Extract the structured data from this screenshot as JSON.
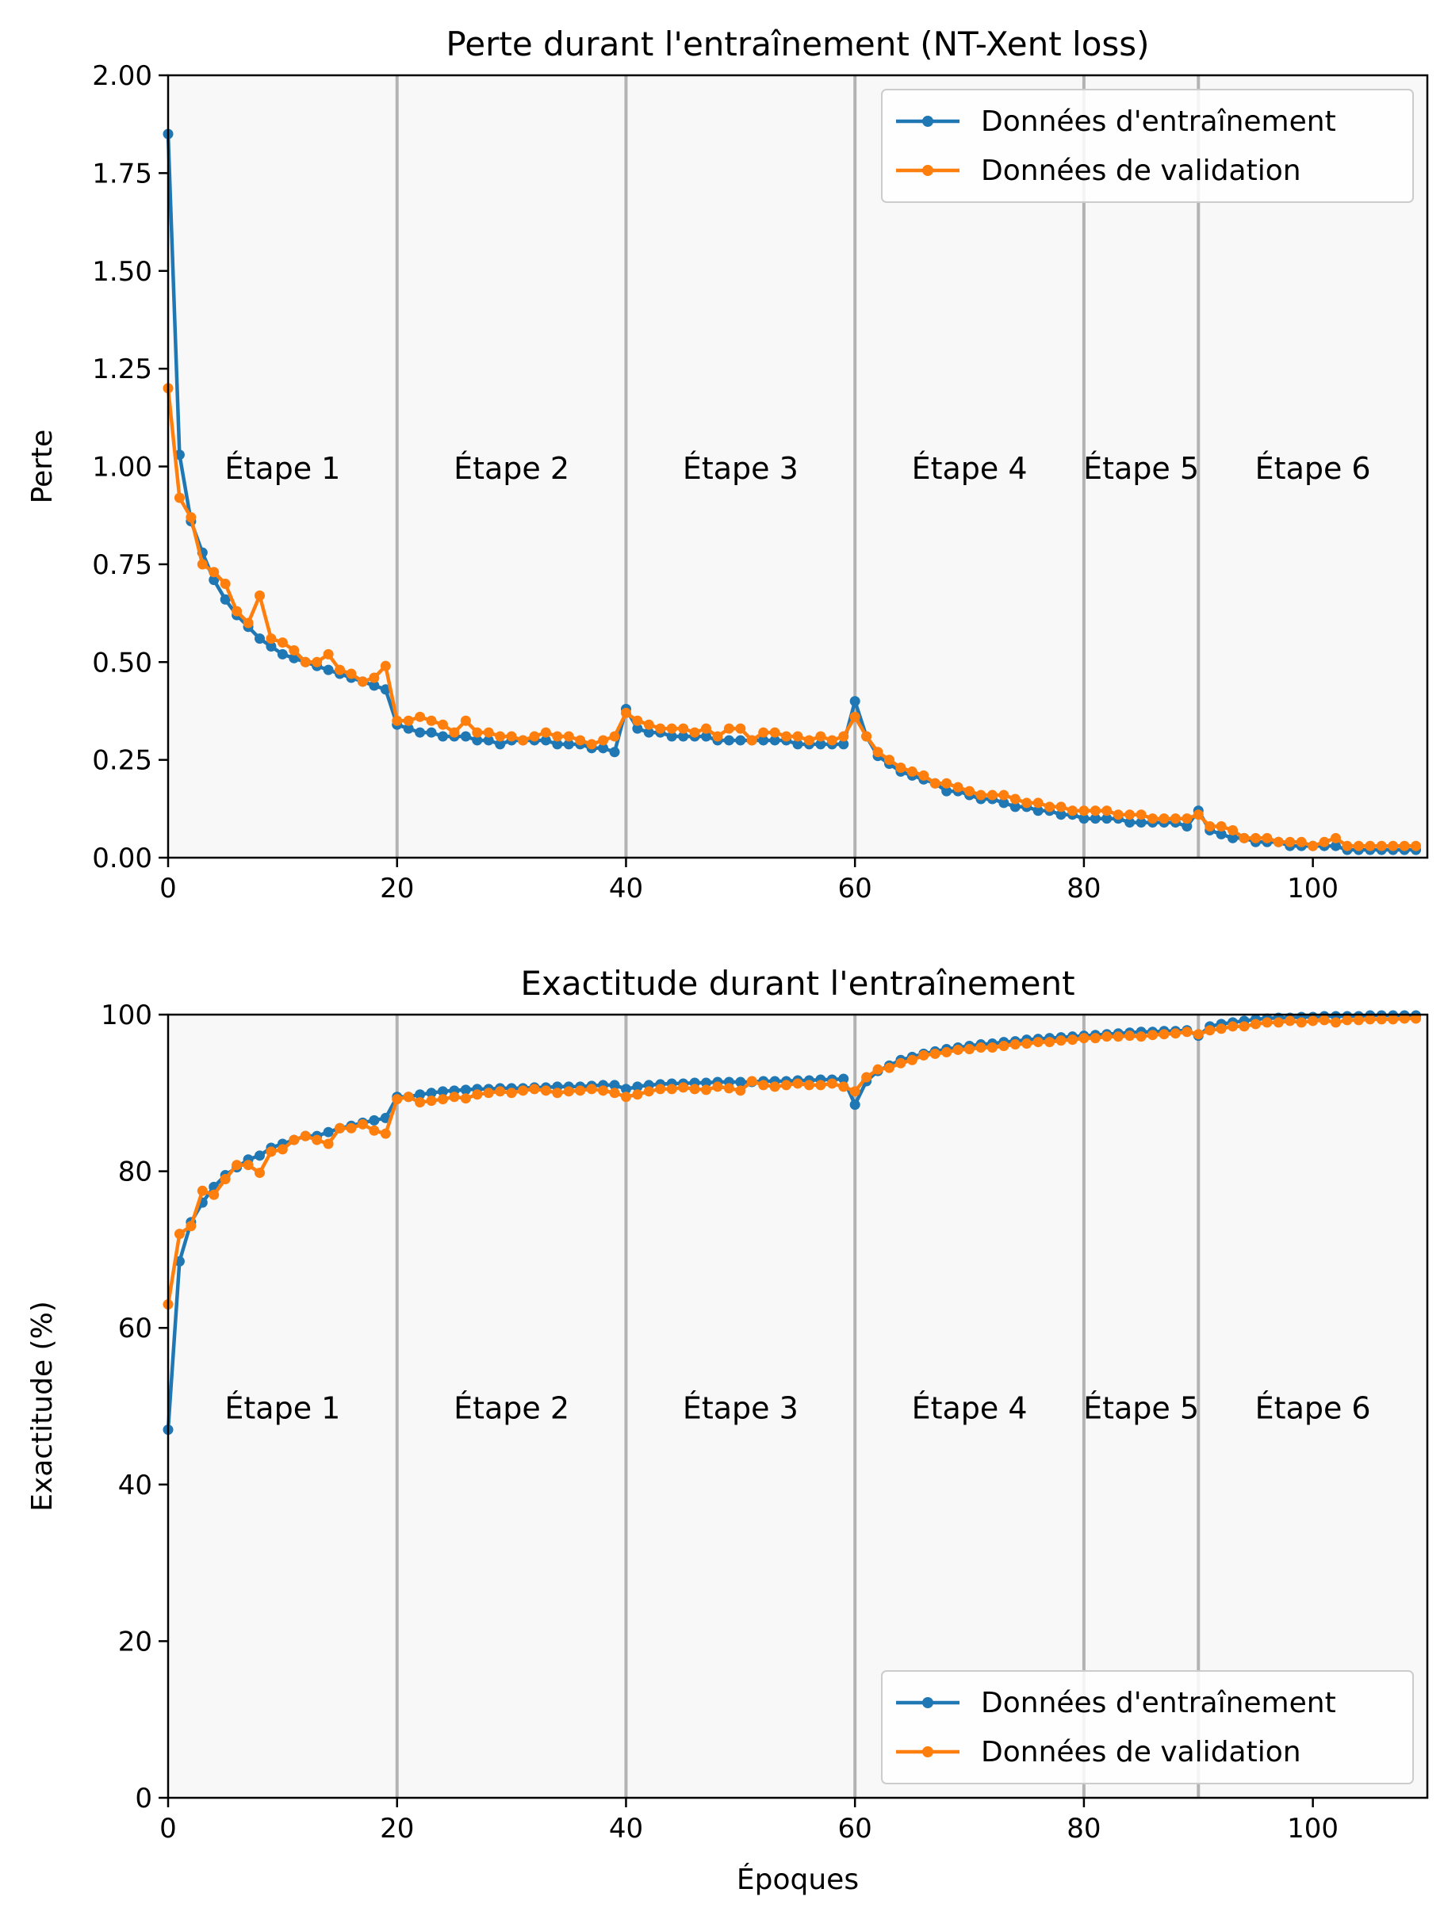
{
  "chart_data": [
    {
      "type": "line",
      "title": "Perte durant l'entraînement (NT-Xent loss)",
      "xlabel": "",
      "ylabel": "Perte",
      "xlim": [
        0,
        110
      ],
      "ylim": [
        0,
        2.0
      ],
      "xticks": [
        "0",
        "20",
        "40",
        "60",
        "80",
        "100"
      ],
      "yticks": [
        "0.00",
        "0.25",
        "0.50",
        "0.75",
        "1.00",
        "1.25",
        "1.50",
        "1.75",
        "2.00"
      ],
      "stage_boundaries": [
        20,
        40,
        60,
        80,
        90
      ],
      "stages": [
        "Étape 1",
        "Étape 2",
        "Étape 3",
        "Étape 4",
        "Étape 5",
        "Étape 6"
      ],
      "stage_label_value": 0.99,
      "legend_position": "upper right",
      "colors": {
        "train": "#1f77b4",
        "val": "#ff7f0e",
        "boundary": "#b3b3b3",
        "background": "#f8f8f8"
      },
      "x": [
        0,
        1,
        2,
        3,
        4,
        5,
        6,
        7,
        8,
        9,
        10,
        11,
        12,
        13,
        14,
        15,
        16,
        17,
        18,
        19,
        20,
        21,
        22,
        23,
        24,
        25,
        26,
        27,
        28,
        29,
        30,
        31,
        32,
        33,
        34,
        35,
        36,
        37,
        38,
        39,
        40,
        41,
        42,
        43,
        44,
        45,
        46,
        47,
        48,
        49,
        50,
        51,
        52,
        53,
        54,
        55,
        56,
        57,
        58,
        59,
        60,
        61,
        62,
        63,
        64,
        65,
        66,
        67,
        68,
        69,
        70,
        71,
        72,
        73,
        74,
        75,
        76,
        77,
        78,
        79,
        80,
        81,
        82,
        83,
        84,
        85,
        86,
        87,
        88,
        89,
        90,
        91,
        92,
        93,
        94,
        95,
        96,
        97,
        98,
        99,
        100,
        101,
        102,
        103,
        104,
        105,
        106,
        107,
        108,
        109
      ],
      "series": [
        {
          "name": "Données d'entraînement",
          "key": "train",
          "values": [
            1.85,
            1.03,
            0.86,
            0.78,
            0.71,
            0.66,
            0.62,
            0.59,
            0.56,
            0.54,
            0.52,
            0.51,
            0.5,
            0.49,
            0.48,
            0.47,
            0.46,
            0.45,
            0.44,
            0.43,
            0.34,
            0.33,
            0.32,
            0.32,
            0.31,
            0.31,
            0.31,
            0.3,
            0.3,
            0.29,
            0.3,
            0.3,
            0.3,
            0.3,
            0.29,
            0.29,
            0.29,
            0.28,
            0.28,
            0.27,
            0.38,
            0.33,
            0.32,
            0.32,
            0.31,
            0.31,
            0.31,
            0.31,
            0.3,
            0.3,
            0.3,
            0.3,
            0.3,
            0.3,
            0.3,
            0.29,
            0.29,
            0.29,
            0.29,
            0.29,
            0.4,
            0.31,
            0.26,
            0.24,
            0.22,
            0.21,
            0.2,
            0.19,
            0.17,
            0.17,
            0.16,
            0.15,
            0.15,
            0.14,
            0.13,
            0.13,
            0.12,
            0.12,
            0.11,
            0.11,
            0.1,
            0.1,
            0.1,
            0.1,
            0.09,
            0.09,
            0.09,
            0.09,
            0.09,
            0.08,
            0.12,
            0.07,
            0.06,
            0.05,
            0.05,
            0.04,
            0.04,
            0.04,
            0.03,
            0.03,
            0.03,
            0.03,
            0.03,
            0.02,
            0.02,
            0.02,
            0.02,
            0.02,
            0.02,
            0.02
          ]
        },
        {
          "name": "Données de validation",
          "key": "val",
          "values": [
            1.2,
            0.92,
            0.87,
            0.75,
            0.73,
            0.7,
            0.63,
            0.6,
            0.67,
            0.56,
            0.55,
            0.53,
            0.5,
            0.5,
            0.52,
            0.48,
            0.47,
            0.45,
            0.46,
            0.49,
            0.35,
            0.35,
            0.36,
            0.35,
            0.34,
            0.32,
            0.35,
            0.32,
            0.32,
            0.31,
            0.31,
            0.3,
            0.31,
            0.32,
            0.31,
            0.31,
            0.3,
            0.29,
            0.3,
            0.31,
            0.37,
            0.35,
            0.34,
            0.33,
            0.33,
            0.33,
            0.32,
            0.33,
            0.31,
            0.33,
            0.33,
            0.3,
            0.32,
            0.32,
            0.31,
            0.31,
            0.3,
            0.31,
            0.3,
            0.31,
            0.36,
            0.31,
            0.27,
            0.25,
            0.23,
            0.22,
            0.21,
            0.19,
            0.19,
            0.18,
            0.17,
            0.16,
            0.16,
            0.16,
            0.15,
            0.14,
            0.14,
            0.13,
            0.13,
            0.12,
            0.12,
            0.12,
            0.12,
            0.11,
            0.11,
            0.11,
            0.1,
            0.1,
            0.1,
            0.1,
            0.11,
            0.08,
            0.08,
            0.07,
            0.05,
            0.05,
            0.05,
            0.04,
            0.04,
            0.04,
            0.03,
            0.04,
            0.05,
            0.03,
            0.03,
            0.03,
            0.03,
            0.03,
            0.03,
            0.03
          ]
        }
      ]
    },
    {
      "type": "line",
      "title": "Exactitude durant l'entraînement",
      "xlabel": "Époques",
      "ylabel": "Exactitude (%)",
      "xlim": [
        0,
        110
      ],
      "ylim": [
        0,
        100
      ],
      "xticks": [
        "0",
        "20",
        "40",
        "60",
        "80",
        "100"
      ],
      "yticks": [
        "0",
        "20",
        "40",
        "60",
        "80",
        "100"
      ],
      "stage_boundaries": [
        20,
        40,
        60,
        80,
        90
      ],
      "stages": [
        "Étape 1",
        "Étape 2",
        "Étape 3",
        "Étape 4",
        "Étape 5",
        "Étape 6"
      ],
      "stage_label_value": 49.5,
      "legend_position": "lower right",
      "colors": {
        "train": "#1f77b4",
        "val": "#ff7f0e",
        "boundary": "#b3b3b3",
        "background": "#f8f8f8"
      },
      "x": [
        0,
        1,
        2,
        3,
        4,
        5,
        6,
        7,
        8,
        9,
        10,
        11,
        12,
        13,
        14,
        15,
        16,
        17,
        18,
        19,
        20,
        21,
        22,
        23,
        24,
        25,
        26,
        27,
        28,
        29,
        30,
        31,
        32,
        33,
        34,
        35,
        36,
        37,
        38,
        39,
        40,
        41,
        42,
        43,
        44,
        45,
        46,
        47,
        48,
        49,
        50,
        51,
        52,
        53,
        54,
        55,
        56,
        57,
        58,
        59,
        60,
        61,
        62,
        63,
        64,
        65,
        66,
        67,
        68,
        69,
        70,
        71,
        72,
        73,
        74,
        75,
        76,
        77,
        78,
        79,
        80,
        81,
        82,
        83,
        84,
        85,
        86,
        87,
        88,
        89,
        90,
        91,
        92,
        93,
        94,
        95,
        96,
        97,
        98,
        99,
        100,
        101,
        102,
        103,
        104,
        105,
        106,
        107,
        108,
        109
      ],
      "series": [
        {
          "name": "Données d'entraînement",
          "key": "train",
          "values": [
            47.0,
            68.5,
            73.5,
            76.0,
            78.0,
            79.5,
            80.5,
            81.5,
            82.0,
            83.0,
            83.5,
            84.0,
            84.5,
            84.5,
            85.0,
            85.5,
            85.8,
            86.2,
            86.5,
            86.8,
            89.5,
            89.5,
            89.8,
            90.0,
            90.2,
            90.3,
            90.4,
            90.5,
            90.5,
            90.6,
            90.6,
            90.6,
            90.7,
            90.7,
            90.8,
            90.8,
            90.8,
            90.9,
            91.0,
            91.0,
            90.5,
            90.8,
            91.0,
            91.1,
            91.2,
            91.2,
            91.3,
            91.3,
            91.4,
            91.4,
            91.4,
            91.4,
            91.5,
            91.5,
            91.5,
            91.6,
            91.6,
            91.7,
            91.7,
            91.8,
            88.5,
            91.5,
            92.8,
            93.5,
            94.2,
            94.6,
            95.0,
            95.3,
            95.6,
            95.8,
            96.0,
            96.2,
            96.3,
            96.5,
            96.6,
            96.8,
            96.9,
            97.0,
            97.1,
            97.2,
            97.3,
            97.4,
            97.5,
            97.6,
            97.7,
            97.8,
            97.8,
            97.9,
            97.9,
            98.0,
            97.3,
            98.5,
            98.8,
            99.0,
            99.2,
            99.4,
            99.5,
            99.6,
            99.6,
            99.7,
            99.7,
            99.8,
            99.8,
            99.8,
            99.8,
            99.9,
            99.9,
            99.9,
            99.9,
            99.9
          ]
        },
        {
          "name": "Données de validation",
          "key": "val",
          "values": [
            63.0,
            72.0,
            73.0,
            77.5,
            77.0,
            79.0,
            80.8,
            80.8,
            79.8,
            82.5,
            82.8,
            84.0,
            84.5,
            84.0,
            83.5,
            85.5,
            85.5,
            86.0,
            85.2,
            84.8,
            89.2,
            89.5,
            88.8,
            89.0,
            89.2,
            89.5,
            89.3,
            89.8,
            90.0,
            90.2,
            90.0,
            90.3,
            90.5,
            90.3,
            90.0,
            90.2,
            90.3,
            90.5,
            90.3,
            90.0,
            89.5,
            89.8,
            90.2,
            90.5,
            90.5,
            90.7,
            90.5,
            90.4,
            90.8,
            90.6,
            90.3,
            91.5,
            91.0,
            90.8,
            91.0,
            91.2,
            91.0,
            91.0,
            91.2,
            90.8,
            90.2,
            92.0,
            93.0,
            93.2,
            93.8,
            94.2,
            94.8,
            95.0,
            95.2,
            95.5,
            95.6,
            95.8,
            95.8,
            96.0,
            96.2,
            96.3,
            96.5,
            96.5,
            96.7,
            96.8,
            97.0,
            97.0,
            97.2,
            97.2,
            97.3,
            97.2,
            97.4,
            97.5,
            97.6,
            97.8,
            97.5,
            98.0,
            98.2,
            98.5,
            98.5,
            98.8,
            99.0,
            99.0,
            99.2,
            99.0,
            99.2,
            99.3,
            99.0,
            99.3,
            99.3,
            99.4,
            99.4,
            99.4,
            99.5,
            99.5
          ]
        }
      ]
    }
  ]
}
